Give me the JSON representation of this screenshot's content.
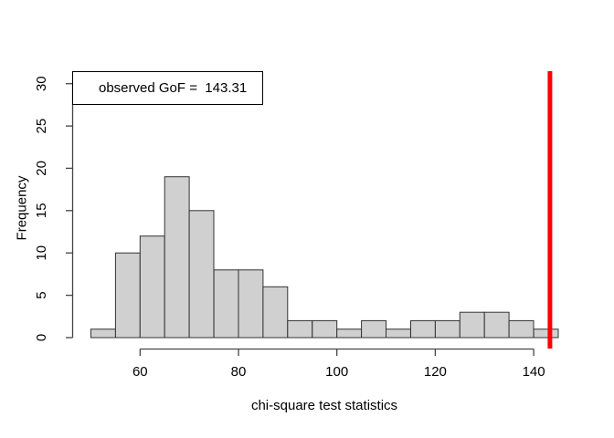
{
  "figure": {
    "background": "#ffffff"
  },
  "legend": {
    "text": "observed GoF =  143.31"
  },
  "axes": {
    "x": {
      "label": "chi-square test statistics",
      "ticks": [
        60,
        80,
        100,
        120,
        140
      ]
    },
    "y": {
      "label": "Frequency",
      "ticks": [
        0,
        5,
        10,
        15,
        20,
        25,
        30
      ]
    }
  },
  "colors": {
    "axis": "#454545",
    "text": "#000000",
    "bar_fill": "#d0d0d0",
    "bar_border": "#333333",
    "observed_line": "#ff0000",
    "legend_border": "#000000",
    "background": "#ffffff"
  },
  "chart_data": {
    "type": "bar",
    "subtype": "histogram",
    "title": "",
    "xlabel": "chi-square test statistics",
    "ylabel": "Frequency",
    "bin_edges": [
      50,
      55,
      60,
      65,
      70,
      75,
      80,
      85,
      90,
      95,
      100,
      105,
      110,
      115,
      120,
      125,
      130,
      135,
      140,
      145
    ],
    "counts": [
      1,
      10,
      12,
      19,
      15,
      8,
      8,
      6,
      2,
      2,
      1,
      2,
      1,
      2,
      2,
      3,
      3,
      2,
      1
    ],
    "n_total": 100,
    "x_ticks": [
      60,
      80,
      100,
      120,
      140
    ],
    "y_ticks": [
      0,
      5,
      10,
      15,
      20,
      25,
      30
    ],
    "xlim": [
      50,
      145
    ],
    "ylim": [
      0,
      30
    ],
    "grid": false,
    "legend_position": "topleft",
    "annotation": "observed GoF =  143.31",
    "observed_value": 143.31,
    "bar_fill": "#d0d0d0",
    "bar_border": "#333333",
    "observed_line_color": "#ff0000"
  }
}
